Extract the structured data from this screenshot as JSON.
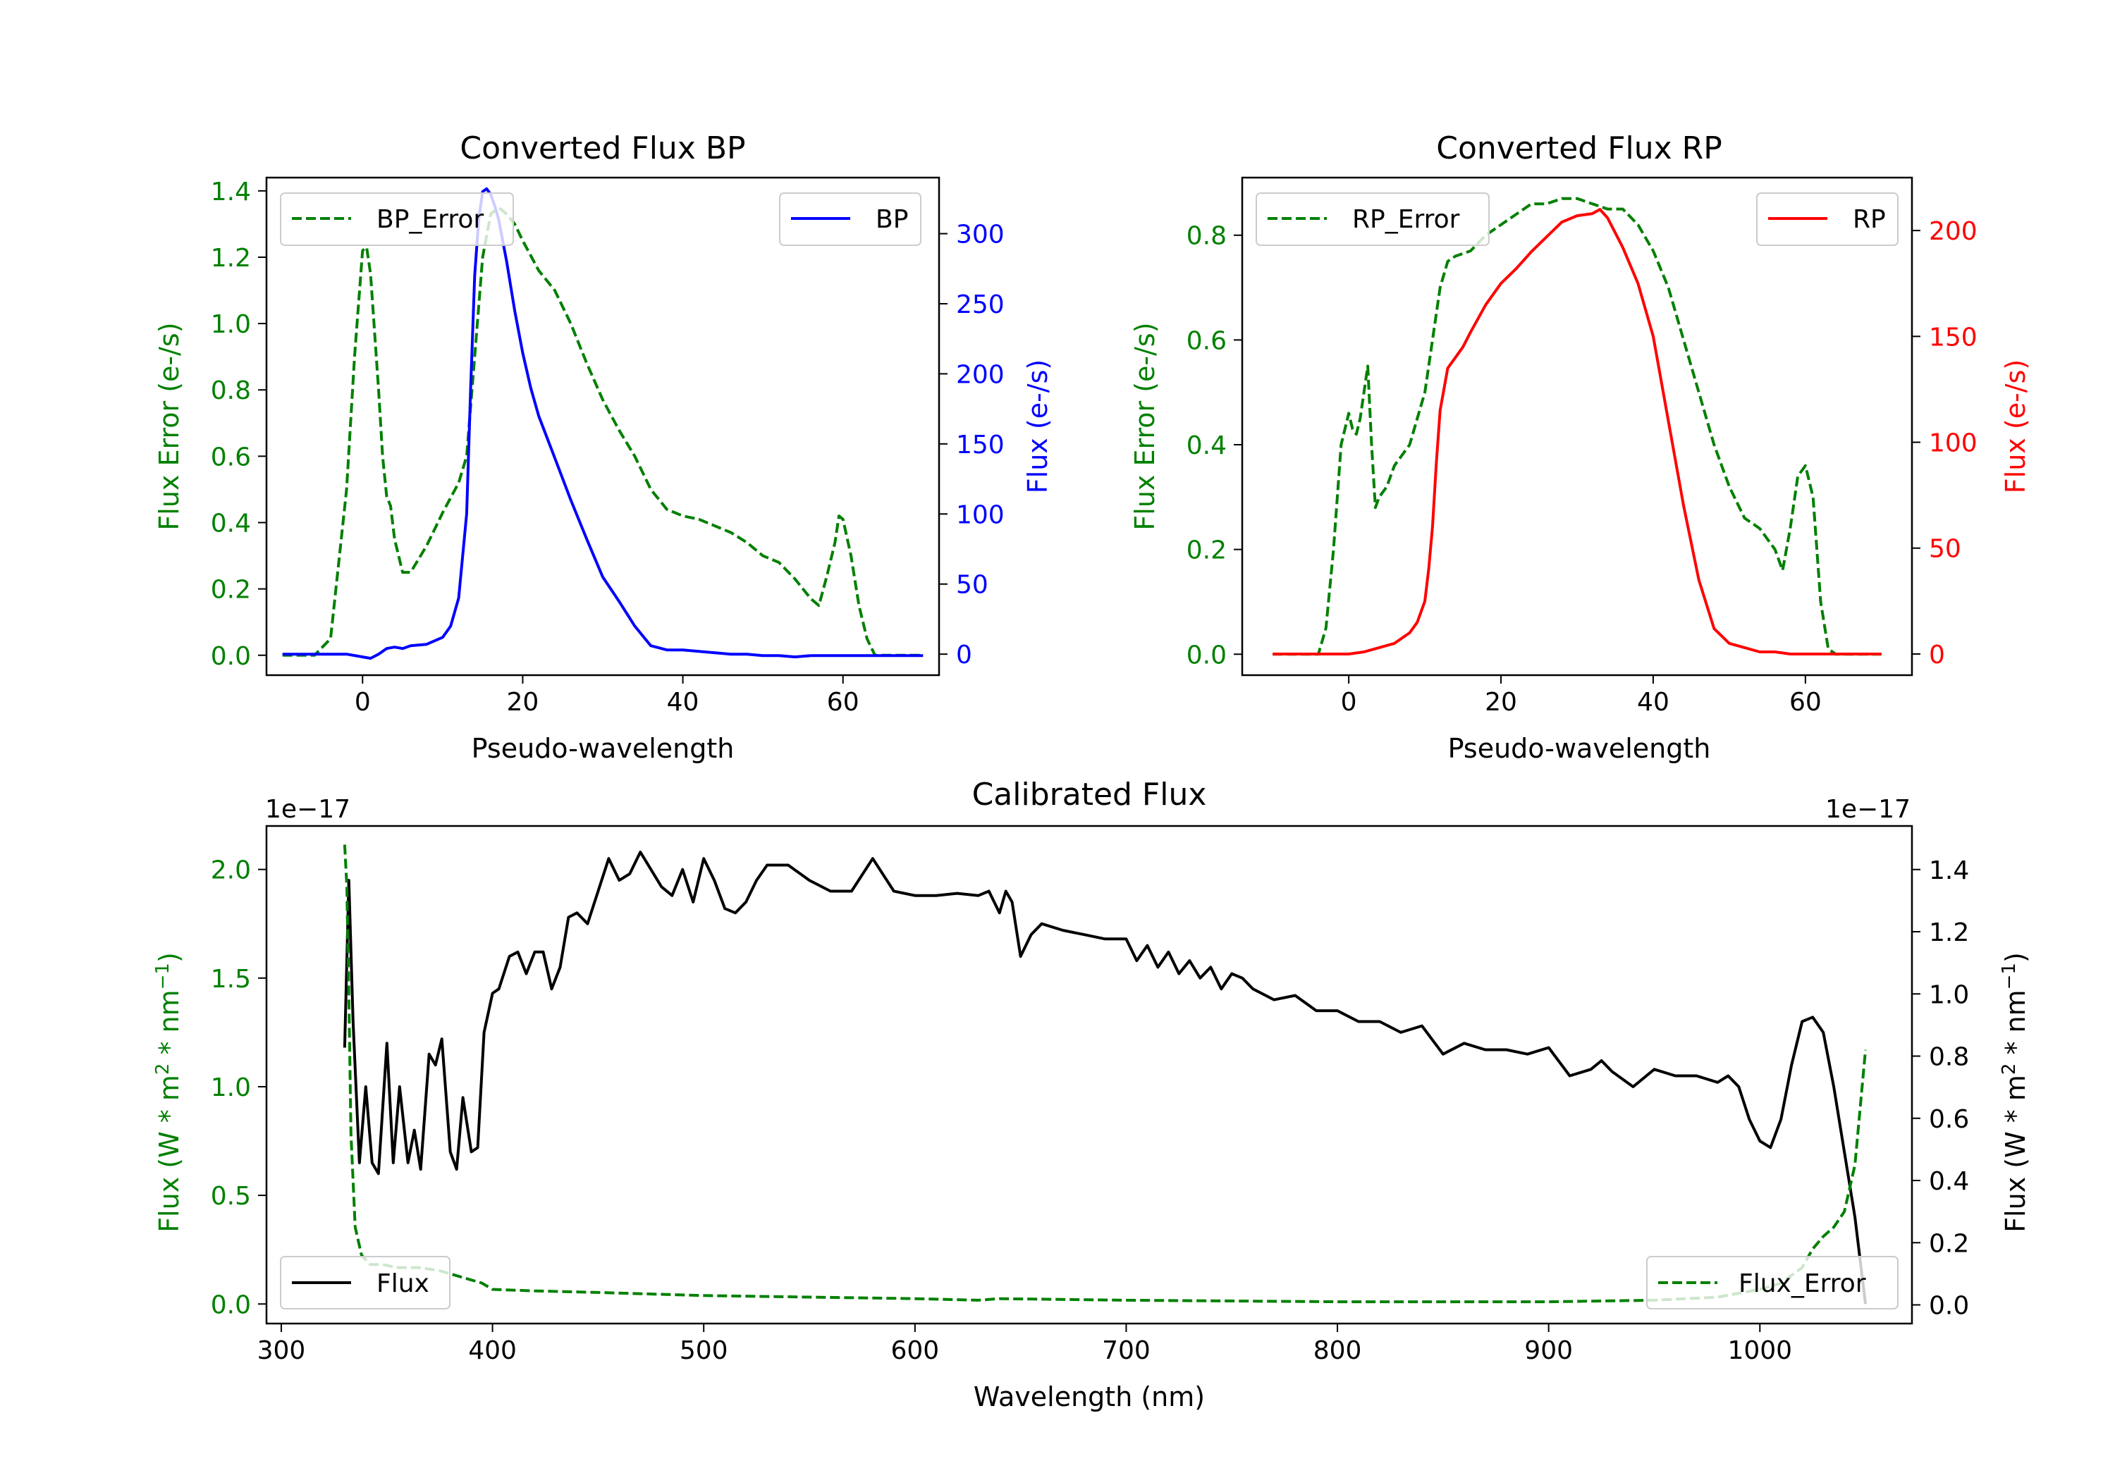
{
  "chart_data": [
    {
      "type": "line",
      "title": "Converted Flux BP",
      "xlabel": "Pseudo-wavelength",
      "ylabel_left": "Flux Error (e-/s)",
      "ylabel_right": "Flux (e-/s)",
      "xlim": [
        -12,
        72
      ],
      "ylim_left": [
        -0.06,
        1.44
      ],
      "ylim_right": [
        -15,
        340
      ],
      "xticks": [
        "0",
        "20",
        "40",
        "60"
      ],
      "yticks_left": [
        "0.0",
        "0.2",
        "0.4",
        "0.6",
        "0.8",
        "1.0",
        "1.2",
        "1.4"
      ],
      "yticks_right": [
        "0",
        "50",
        "100",
        "150",
        "200",
        "250",
        "300"
      ],
      "colors": {
        "left": "#008000",
        "right": "#0000ff"
      },
      "series": [
        {
          "name": "BP_Error",
          "axis": "left",
          "style": "dashed",
          "color": "#008000",
          "x": [
            -10,
            -6,
            -4,
            -2,
            -1,
            0,
            0.5,
            1,
            2,
            2.5,
            3,
            3.5,
            4,
            5,
            6,
            8,
            10,
            12,
            13,
            14,
            15,
            16,
            17,
            18,
            19,
            20,
            22,
            24,
            26,
            28,
            30,
            32,
            34,
            36,
            38,
            40,
            42,
            44,
            46,
            48,
            50,
            52,
            54,
            55,
            56,
            57,
            58,
            59,
            59.5,
            60,
            61,
            62,
            63,
            64,
            66,
            70
          ],
          "values": [
            0.0,
            0.0,
            0.05,
            0.5,
            0.9,
            1.22,
            1.23,
            1.15,
            0.8,
            0.6,
            0.48,
            0.45,
            0.35,
            0.25,
            0.25,
            0.33,
            0.43,
            0.52,
            0.6,
            0.9,
            1.2,
            1.33,
            1.35,
            1.33,
            1.3,
            1.25,
            1.16,
            1.1,
            1.0,
            0.88,
            0.77,
            0.68,
            0.6,
            0.5,
            0.44,
            0.42,
            0.41,
            0.39,
            0.37,
            0.34,
            0.3,
            0.28,
            0.23,
            0.2,
            0.17,
            0.15,
            0.24,
            0.34,
            0.42,
            0.41,
            0.3,
            0.15,
            0.05,
            0.0,
            0.0,
            0.0
          ]
        },
        {
          "name": "BP",
          "axis": "right",
          "style": "solid",
          "color": "#0000ff",
          "x": [
            -10,
            -5,
            -2,
            0,
            1,
            2,
            3,
            4,
            5,
            6,
            8,
            10,
            11,
            12,
            13,
            13.5,
            14,
            14.5,
            15,
            15.5,
            16,
            16.5,
            17,
            18,
            19,
            20,
            21,
            22,
            24,
            26,
            28,
            30,
            32,
            34,
            36,
            38,
            40,
            42,
            44,
            46,
            48,
            50,
            52,
            54,
            56,
            58,
            60,
            62,
            65,
            70
          ],
          "values": [
            0,
            0,
            0,
            -2,
            -3,
            0,
            4,
            5,
            4,
            6,
            7,
            12,
            20,
            40,
            100,
            190,
            270,
            310,
            330,
            332,
            328,
            320,
            310,
            280,
            245,
            215,
            190,
            170,
            140,
            110,
            82,
            55,
            38,
            20,
            6,
            3,
            3,
            2,
            1,
            0,
            0,
            -1,
            -1,
            -2,
            -1,
            -1,
            -1,
            -1,
            -1,
            -1
          ]
        }
      ],
      "legend": [
        "BP_Error",
        "BP"
      ]
    },
    {
      "type": "line",
      "title": "Converted Flux RP",
      "xlabel": "Pseudo-wavelength",
      "ylabel_left": "Flux Error (e-/s)",
      "ylabel_right": "Flux (e-/s)",
      "xlim": [
        -14,
        74
      ],
      "ylim_left": [
        -0.04,
        0.91
      ],
      "ylim_right": [
        -10,
        225
      ],
      "xticks": [
        "0",
        "20",
        "40",
        "60"
      ],
      "yticks_left": [
        "0.0",
        "0.2",
        "0.4",
        "0.6",
        "0.8"
      ],
      "yticks_right": [
        "0",
        "50",
        "100",
        "150",
        "200"
      ],
      "colors": {
        "left": "#008000",
        "right": "#ff0000"
      },
      "series": [
        {
          "name": "RP_Error",
          "axis": "left",
          "style": "dashed",
          "color": "#008000",
          "x": [
            -10,
            -5,
            -4,
            -3,
            -2,
            -1,
            0,
            0.5,
            1,
            1.5,
            2,
            2.5,
            3,
            3.5,
            4,
            5,
            6,
            8,
            10,
            12,
            13,
            14,
            16,
            18,
            20,
            22,
            24,
            26,
            28,
            30,
            32,
            34,
            36,
            38,
            40,
            42,
            44,
            46,
            48,
            50,
            52,
            54,
            55,
            56,
            57,
            58,
            59,
            60,
            61,
            62,
            63,
            64,
            66,
            70
          ],
          "values": [
            0.0,
            0.0,
            0.0,
            0.05,
            0.2,
            0.4,
            0.46,
            0.43,
            0.42,
            0.45,
            0.5,
            0.55,
            0.4,
            0.28,
            0.3,
            0.32,
            0.36,
            0.4,
            0.5,
            0.7,
            0.75,
            0.76,
            0.77,
            0.8,
            0.82,
            0.84,
            0.86,
            0.86,
            0.87,
            0.87,
            0.86,
            0.85,
            0.85,
            0.82,
            0.77,
            0.7,
            0.6,
            0.5,
            0.4,
            0.32,
            0.26,
            0.24,
            0.22,
            0.2,
            0.16,
            0.24,
            0.34,
            0.36,
            0.3,
            0.1,
            0.01,
            0.0,
            0.0,
            0.0
          ]
        },
        {
          "name": "RP",
          "axis": "right",
          "style": "solid",
          "color": "#ff0000",
          "x": [
            -10,
            -5,
            0,
            2,
            4,
            6,
            8,
            9,
            10,
            10.5,
            11,
            11.5,
            12,
            13,
            14,
            15,
            16,
            18,
            20,
            22,
            24,
            26,
            28,
            30,
            32,
            33,
            34,
            36,
            38,
            40,
            42,
            44,
            46,
            48,
            50,
            52,
            54,
            56,
            58,
            60,
            62,
            65,
            70
          ],
          "values": [
            0,
            0,
            0,
            1,
            3,
            5,
            10,
            15,
            25,
            40,
            60,
            90,
            115,
            135,
            140,
            145,
            152,
            165,
            175,
            182,
            190,
            197,
            204,
            207,
            208,
            210,
            206,
            192,
            175,
            150,
            110,
            70,
            35,
            12,
            5,
            3,
            1,
            1,
            0,
            0,
            0,
            0,
            0
          ]
        }
      ],
      "legend": [
        "RP_Error",
        "RP"
      ]
    },
    {
      "type": "line",
      "title": "Calibrated Flux",
      "xlabel": "Wavelength (nm)",
      "ylabel_left": "Flux (W * m^2 * nm^-1)",
      "ylabel_right": "Flux (W * m^2 * nm^-1)",
      "offset_left": "1e−17",
      "offset_right": "1e−17",
      "xlim": [
        293,
        1072
      ],
      "ylim_left": [
        -0.09,
        2.2
      ],
      "ylim_right": [
        -0.06,
        1.54
      ],
      "xticks": [
        "300",
        "400",
        "500",
        "600",
        "700",
        "800",
        "900",
        "1000"
      ],
      "yticks_left": [
        "0.0",
        "0.5",
        "1.0",
        "1.5",
        "2.0"
      ],
      "yticks_right": [
        "0.0",
        "0.2",
        "0.4",
        "0.6",
        "0.8",
        "1.0",
        "1.2",
        "1.4"
      ],
      "colors": {
        "left": "#008000",
        "right": "#000000"
      },
      "series": [
        {
          "name": "Flux",
          "axis": "left",
          "style": "solid",
          "color": "#000000",
          "x": [
            330,
            332,
            334,
            337,
            340,
            343,
            346,
            350,
            353,
            356,
            360,
            363,
            366,
            370,
            373,
            376,
            380,
            383,
            386,
            390,
            393,
            396,
            400,
            403,
            408,
            412,
            416,
            420,
            424,
            428,
            432,
            436,
            440,
            445,
            450,
            455,
            460,
            465,
            470,
            475,
            480,
            485,
            490,
            495,
            500,
            505,
            510,
            515,
            520,
            525,
            530,
            540,
            550,
            560,
            570,
            580,
            590,
            600,
            610,
            620,
            630,
            635,
            640,
            643,
            646,
            650,
            655,
            660,
            670,
            680,
            690,
            700,
            705,
            710,
            715,
            720,
            725,
            730,
            735,
            740,
            745,
            750,
            755,
            760,
            770,
            780,
            790,
            800,
            810,
            820,
            830,
            840,
            850,
            860,
            870,
            880,
            890,
            900,
            910,
            920,
            925,
            930,
            940,
            950,
            960,
            970,
            980,
            985,
            990,
            995,
            1000,
            1005,
            1010,
            1015,
            1020,
            1025,
            1030,
            1035,
            1040,
            1045,
            1050
          ],
          "values": [
            1.18,
            1.95,
            1.3,
            0.65,
            1.0,
            0.65,
            0.6,
            1.2,
            0.65,
            1.0,
            0.65,
            0.8,
            0.62,
            1.15,
            1.1,
            1.22,
            0.7,
            0.62,
            0.95,
            0.7,
            0.72,
            1.25,
            1.43,
            1.45,
            1.6,
            1.62,
            1.52,
            1.62,
            1.62,
            1.45,
            1.55,
            1.78,
            1.8,
            1.75,
            1.9,
            2.05,
            1.95,
            1.98,
            2.08,
            2.0,
            1.92,
            1.88,
            2.0,
            1.85,
            2.05,
            1.95,
            1.82,
            1.8,
            1.85,
            1.95,
            2.02,
            2.02,
            1.95,
            1.9,
            1.9,
            2.05,
            1.9,
            1.88,
            1.88,
            1.89,
            1.88,
            1.9,
            1.8,
            1.9,
            1.85,
            1.6,
            1.7,
            1.75,
            1.72,
            1.7,
            1.68,
            1.68,
            1.58,
            1.65,
            1.55,
            1.62,
            1.52,
            1.58,
            1.5,
            1.55,
            1.45,
            1.52,
            1.5,
            1.45,
            1.4,
            1.42,
            1.35,
            1.35,
            1.3,
            1.3,
            1.25,
            1.28,
            1.15,
            1.2,
            1.17,
            1.17,
            1.15,
            1.18,
            1.05,
            1.08,
            1.12,
            1.07,
            1.0,
            1.08,
            1.05,
            1.05,
            1.02,
            1.05,
            1.0,
            0.85,
            0.75,
            0.72,
            0.85,
            1.1,
            1.3,
            1.32,
            1.25,
            1.0,
            0.7,
            0.4,
            0.0
          ]
        },
        {
          "name": "Flux_Error",
          "axis": "right",
          "style": "dashed",
          "color": "#008000",
          "x": [
            330,
            331,
            332,
            333,
            335,
            338,
            342,
            348,
            355,
            365,
            375,
            385,
            395,
            400,
            420,
            450,
            500,
            550,
            600,
            630,
            640,
            700,
            800,
            900,
            950,
            980,
            1000,
            1010,
            1020,
            1025,
            1030,
            1035,
            1040,
            1045,
            1050
          ],
          "values": [
            1.48,
            1.35,
            1.0,
            0.55,
            0.25,
            0.16,
            0.13,
            0.13,
            0.12,
            0.12,
            0.11,
            0.09,
            0.07,
            0.05,
            0.045,
            0.04,
            0.03,
            0.025,
            0.02,
            0.015,
            0.02,
            0.015,
            0.01,
            0.01,
            0.015,
            0.025,
            0.05,
            0.07,
            0.12,
            0.18,
            0.22,
            0.25,
            0.3,
            0.45,
            0.82
          ]
        }
      ],
      "legend": [
        "Flux",
        "Flux_Error"
      ]
    }
  ]
}
